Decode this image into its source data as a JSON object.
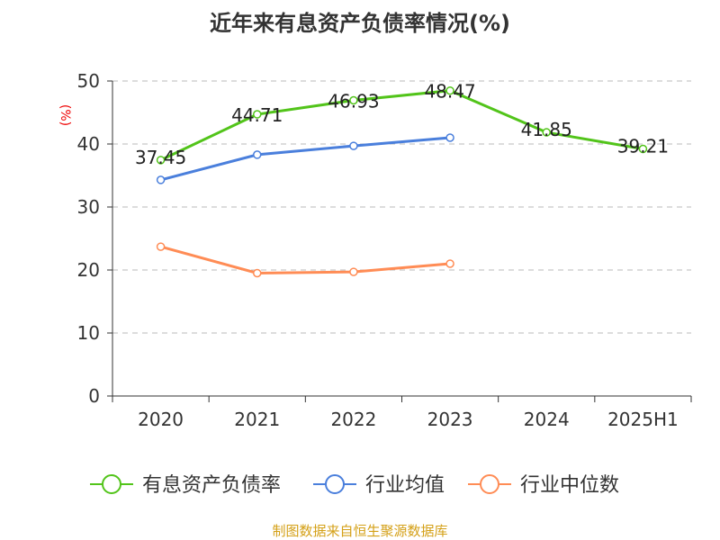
{
  "chart_data": {
    "type": "line",
    "title": "近年来有息资产负债率情况(%)",
    "ylabel": "(%)",
    "categories": [
      "2020",
      "2021",
      "2022",
      "2023",
      "2024",
      "2025H1"
    ],
    "ylim": [
      0,
      50
    ],
    "yticks": [
      0,
      10,
      20,
      30,
      40,
      50
    ],
    "grid": true,
    "legend_position": "bottom",
    "series": [
      {
        "name": "有息资产负债率",
        "color": "#52c41a",
        "values": [
          37.45,
          44.71,
          46.93,
          48.47,
          41.85,
          39.21
        ],
        "labels": [
          "37.45",
          "44.71",
          "46.93",
          "48.47",
          "41.85",
          "39.21"
        ]
      },
      {
        "name": "行业均值",
        "color": "#4a7fdc",
        "values": [
          34.3,
          38.3,
          39.7,
          41.0,
          null,
          null
        ]
      },
      {
        "name": "行业中位数",
        "color": "#ff8c55",
        "values": [
          23.7,
          19.5,
          19.7,
          21.0,
          null,
          null
        ]
      }
    ],
    "source": "制图数据来自恒生聚源数据库"
  }
}
